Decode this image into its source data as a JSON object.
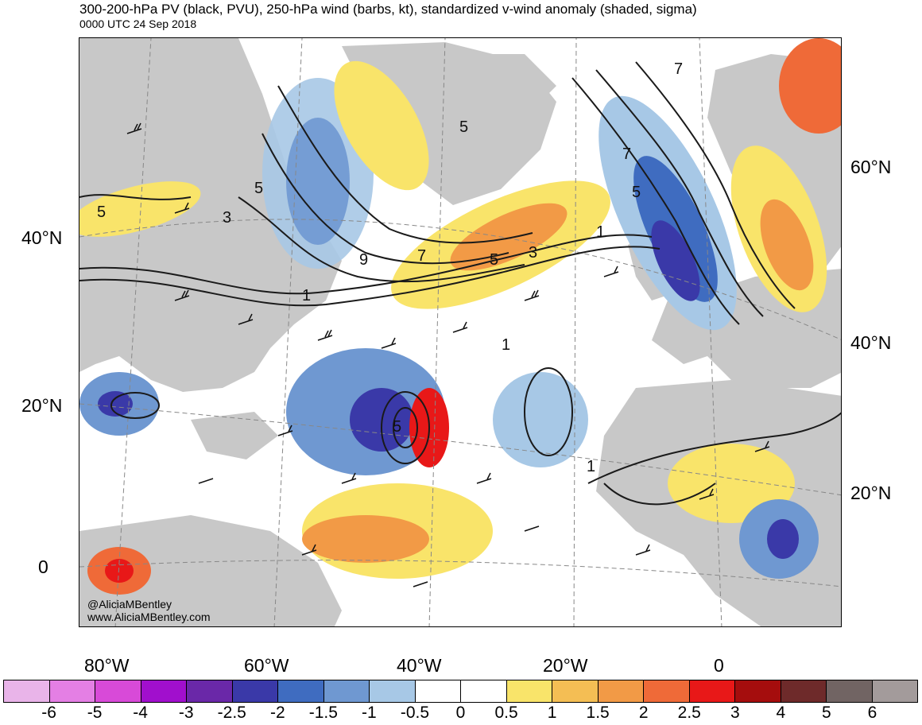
{
  "title": "300-200-hPa PV (black, PVU), 250-hPa wind (barbs, kt), standardized v-wind anomaly (shaded, sigma)",
  "subtitle": "0000 UTC 24 Sep 2018",
  "credit": {
    "handle": "@AliciaMBentley",
    "website": "www.AliciaMBentley.com"
  },
  "map": {
    "left_lat_labels": [
      "40°N",
      "20°N",
      "0"
    ],
    "right_lat_labels": [
      "60°N",
      "40°N",
      "20°N"
    ],
    "lon_labels": [
      "80°W",
      "60°W",
      "40°W",
      "20°W",
      "0"
    ],
    "contour_labels": [
      "5",
      "3",
      "5",
      "1",
      "9",
      "7",
      "5",
      "3",
      "5",
      "1",
      "5",
      "7",
      "7",
      "1",
      "1",
      "5"
    ],
    "colors": {
      "land": "#c8c8c8",
      "ocean": "#ffffff",
      "contour": "#1a1a1a"
    }
  },
  "colorbar": {
    "labels": [
      "-6",
      "-5",
      "-4",
      "-3",
      "-2.5",
      "-2",
      "-1.5",
      "-1",
      "-0.5",
      "0",
      "0.5",
      "1",
      "1.5",
      "2",
      "2.5",
      "3",
      "4",
      "5",
      "6"
    ],
    "colors": [
      "#e9b4e9",
      "#e47fe4",
      "#d84ad8",
      "#a10fcd",
      "#6a28a8",
      "#3a39a8",
      "#3f6cc0",
      "#6f98d1",
      "#a7c8e6",
      "#ffffff",
      "#ffffff",
      "#f9e46a",
      "#f4be54",
      "#f29a46",
      "#ef6a38",
      "#e81818",
      "#a50d0d",
      "#6e2a2a",
      "#716463",
      "#a39b9b"
    ]
  }
}
